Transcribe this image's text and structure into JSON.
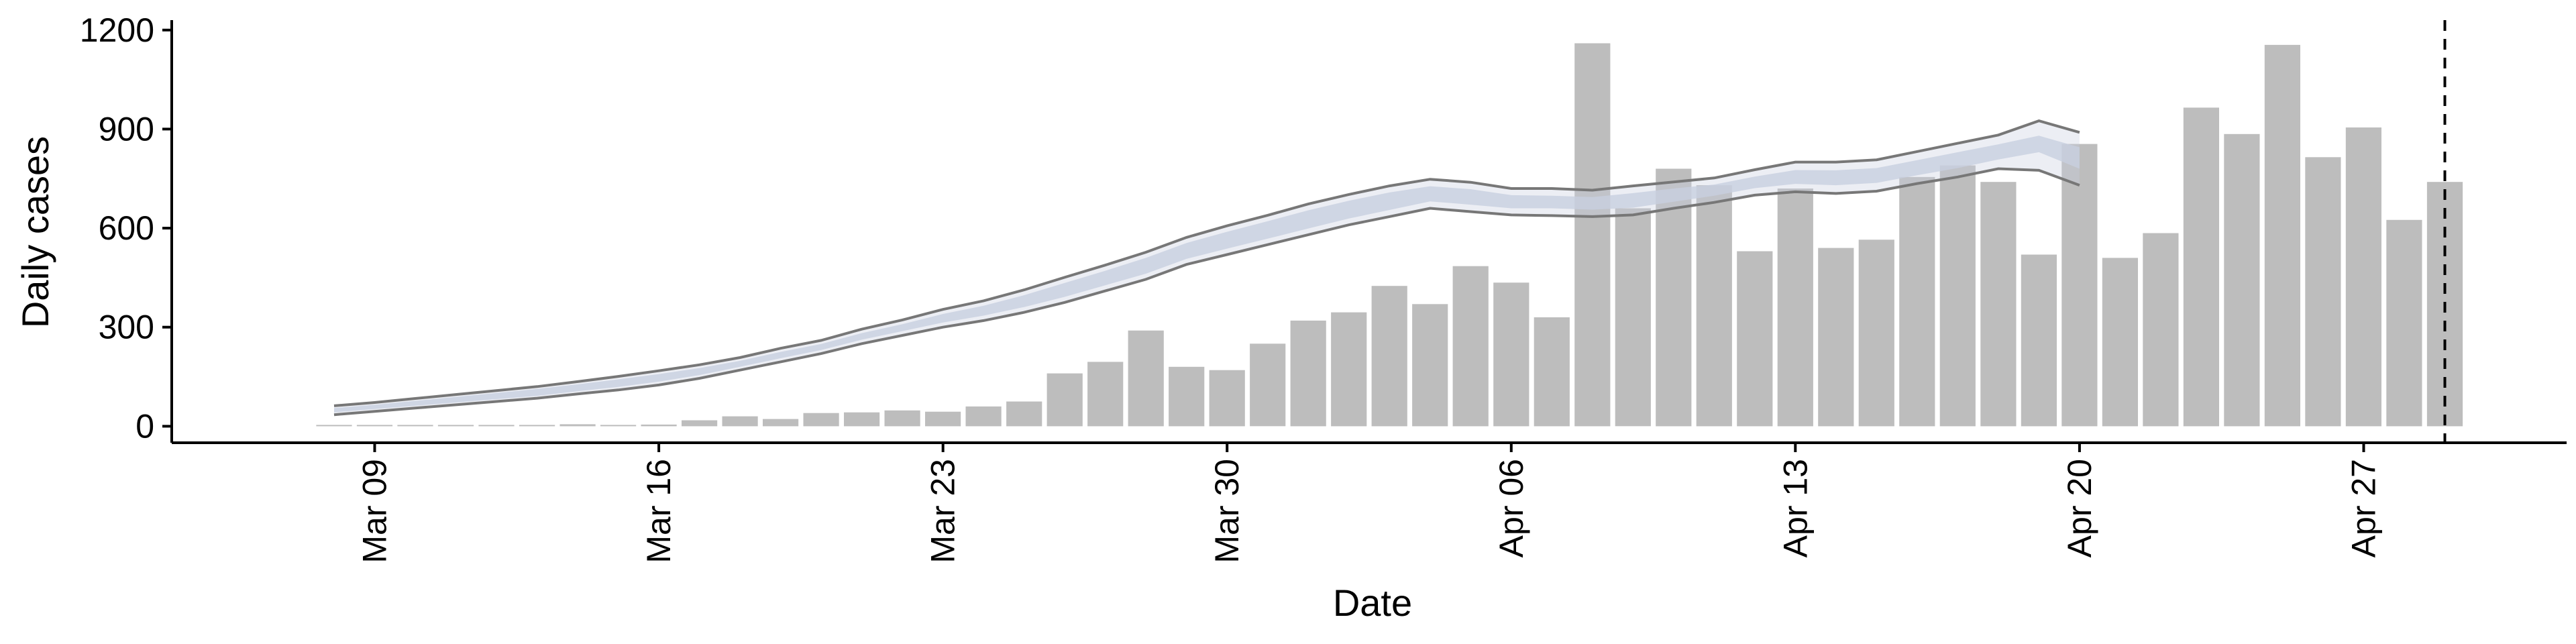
{
  "chart_data": {
    "type": "bar",
    "xlabel": "Date",
    "ylabel": "Daily cases",
    "ylim": [
      -50,
      1230
    ],
    "yticks": [
      0,
      300,
      600,
      900,
      1200
    ],
    "x_tick_dates": [
      "2020-03-09",
      "2020-03-16",
      "2020-03-23",
      "2020-03-30",
      "2020-04-06",
      "2020-04-13",
      "2020-04-20",
      "2020-04-27"
    ],
    "x_tick_labels": [
      "Mar 09",
      "Mar 16",
      "Mar 23",
      "Mar 30",
      "Apr 06",
      "Apr 13",
      "Apr 20",
      "Apr 27"
    ],
    "xlim": [
      "2020-03-04",
      "2020-05-02"
    ],
    "bar_color": "#bdbdbd",
    "band_color": "#c8cfe0",
    "line_color": "#777777",
    "dashed_line_date": "2020-04-29",
    "bars": {
      "dates": [
        "2020-03-08",
        "2020-03-09",
        "2020-03-10",
        "2020-03-11",
        "2020-03-12",
        "2020-03-13",
        "2020-03-14",
        "2020-03-15",
        "2020-03-16",
        "2020-03-17",
        "2020-03-18",
        "2020-03-19",
        "2020-03-20",
        "2020-03-21",
        "2020-03-22",
        "2020-03-23",
        "2020-03-24",
        "2020-03-25",
        "2020-03-26",
        "2020-03-27",
        "2020-03-28",
        "2020-03-29",
        "2020-03-30",
        "2020-03-31",
        "2020-04-01",
        "2020-04-02",
        "2020-04-03",
        "2020-04-04",
        "2020-04-05",
        "2020-04-06",
        "2020-04-07",
        "2020-04-08",
        "2020-04-09",
        "2020-04-10",
        "2020-04-11",
        "2020-04-12",
        "2020-04-13",
        "2020-04-14",
        "2020-04-15",
        "2020-04-16",
        "2020-04-17",
        "2020-04-18",
        "2020-04-19",
        "2020-04-20",
        "2020-04-21",
        "2020-04-22",
        "2020-04-23",
        "2020-04-24",
        "2020-04-25",
        "2020-04-26",
        "2020-04-27",
        "2020-04-28",
        "2020-04-29"
      ],
      "values": [
        2,
        0,
        3,
        3,
        0,
        4,
        6,
        4,
        5,
        18,
        30,
        22,
        40,
        42,
        48,
        44,
        60,
        75,
        160,
        195,
        290,
        180,
        170,
        250,
        320,
        345,
        425,
        370,
        485,
        435,
        330,
        1160,
        660,
        780,
        730,
        530,
        720,
        540,
        565,
        755,
        790,
        740,
        520,
        855,
        510,
        585,
        965,
        885,
        1155,
        815,
        905,
        625,
        740
      ]
    },
    "estimate": {
      "dates": [
        "2020-03-08",
        "2020-03-09",
        "2020-03-10",
        "2020-03-11",
        "2020-03-12",
        "2020-03-13",
        "2020-03-14",
        "2020-03-15",
        "2020-03-16",
        "2020-03-17",
        "2020-03-18",
        "2020-03-19",
        "2020-03-20",
        "2020-03-21",
        "2020-03-22",
        "2020-03-23",
        "2020-03-24",
        "2020-03-25",
        "2020-03-26",
        "2020-03-27",
        "2020-03-28",
        "2020-03-29",
        "2020-03-30",
        "2020-03-31",
        "2020-04-01",
        "2020-04-02",
        "2020-04-03",
        "2020-04-04",
        "2020-04-05",
        "2020-04-06",
        "2020-04-07",
        "2020-04-08",
        "2020-04-09",
        "2020-04-10",
        "2020-04-11",
        "2020-04-12",
        "2020-04-13",
        "2020-04-14",
        "2020-04-15",
        "2020-04-16",
        "2020-04-17",
        "2020-04-18",
        "2020-04-19",
        "2020-04-20"
      ],
      "upper": [
        62,
        72,
        84,
        96,
        108,
        120,
        135,
        151,
        168,
        186,
        208,
        236,
        260,
        294,
        322,
        354,
        380,
        413,
        451,
        488,
        527,
        572,
        607,
        639,
        673,
        702,
        728,
        748,
        739,
        720,
        720,
        715,
        728,
        740,
        752,
        777,
        800,
        800,
        807,
        832,
        857,
        882,
        925,
        890
      ],
      "lower": [
        35,
        45,
        55,
        65,
        75,
        85,
        98,
        110,
        125,
        145,
        170,
        195,
        220,
        250,
        275,
        300,
        320,
        345,
        375,
        410,
        445,
        490,
        520,
        550,
        580,
        610,
        635,
        660,
        650,
        640,
        638,
        635,
        640,
        660,
        678,
        700,
        710,
        705,
        712,
        735,
        755,
        780,
        775,
        730
      ],
      "inner_upper": [
        55,
        65,
        77,
        89,
        101,
        113,
        127,
        142,
        158,
        176,
        198,
        225,
        249,
        282,
        309,
        340,
        365,
        397,
        434,
        471,
        510,
        555,
        589,
        621,
        654,
        683,
        708,
        727,
        718,
        700,
        698,
        694,
        706,
        720,
        732,
        756,
        776,
        775,
        782,
        806,
        830,
        854,
        880,
        845
      ],
      "inner_lower": [
        42,
        52,
        62,
        72,
        82,
        92,
        106,
        119,
        135,
        155,
        180,
        206,
        231,
        262,
        288,
        314,
        335,
        361,
        392,
        427,
        462,
        507,
        538,
        568,
        599,
        629,
        655,
        681,
        671,
        660,
        660,
        656,
        662,
        680,
        698,
        721,
        734,
        730,
        737,
        760,
        782,
        808,
        830,
        780
      ]
    }
  }
}
